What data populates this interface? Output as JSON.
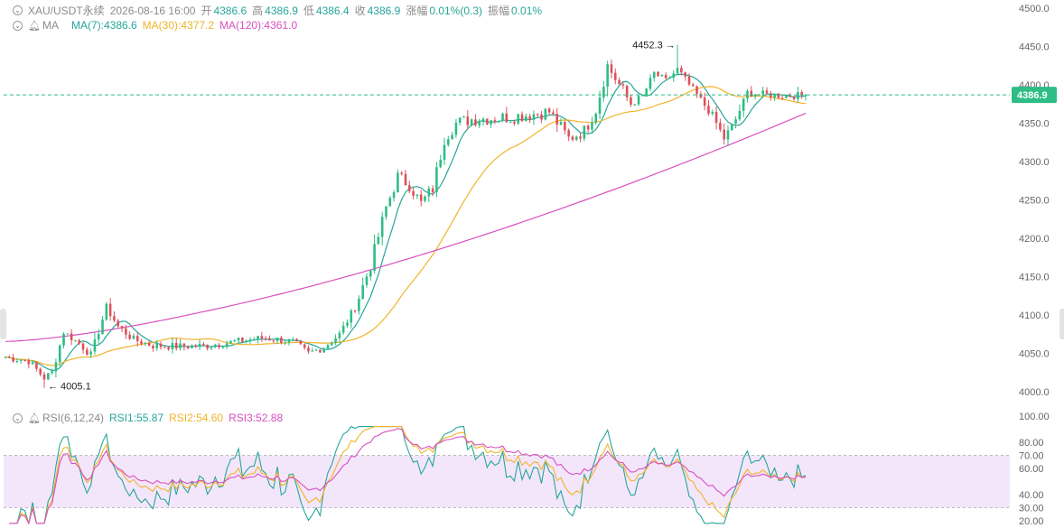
{
  "header": {
    "symbol": "XAU/USDT永续",
    "time": "2026-08-16 16:00",
    "open_label": "开",
    "open": "4386.6",
    "high_label": "高",
    "high": "4386.9",
    "low_label": "低",
    "low": "4386.4",
    "close_label": "收",
    "close": "4386.9",
    "change_label": "涨幅",
    "change": "0.01%(0.3)",
    "amplitude_label": "振幅",
    "amplitude": "0.01%"
  },
  "ma_legend": {
    "name": "MA",
    "items": [
      {
        "label": "MA(7):4386.6",
        "color": "#26a69a"
      },
      {
        "label": "MA(30):4377.2",
        "color": "#f0b429"
      },
      {
        "label": "MA(120):4361.0",
        "color": "#d94fbf"
      }
    ]
  },
  "rsi_legend": {
    "name": "RSI(6,12,24)",
    "items": [
      {
        "label": "RSI1:55.87",
        "color": "#26a69a"
      },
      {
        "label": "RSI2:54.60",
        "color": "#f0b429"
      },
      {
        "label": "RSI3:52.88",
        "color": "#d94fbf"
      }
    ]
  },
  "chart_data": {
    "type": "candlestick",
    "price_axis": {
      "ticks": [
        "4500.0",
        "4450.0",
        "4400.0",
        "4350.0",
        "4300.0",
        "4250.0",
        "4200.0",
        "4150.0",
        "4100.0",
        "4050.0",
        "4000.0"
      ],
      "ylim": [
        3995,
        4505
      ]
    },
    "current_price": "4386.9",
    "annotations": [
      {
        "text": "← 4005.1",
        "value": 4005.1
      },
      {
        "text": "4452.3 →",
        "value": 4452.3
      }
    ],
    "colors": {
      "up": "#2ebd85",
      "down": "#e0505a"
    },
    "ohlc_keypoints": [
      [
        0,
        4045
      ],
      [
        6,
        4040
      ],
      [
        10,
        4018
      ],
      [
        12,
        4025
      ],
      [
        15,
        4078
      ],
      [
        19,
        4063
      ],
      [
        22,
        4048
      ],
      [
        26,
        4110
      ],
      [
        29,
        4085
      ],
      [
        33,
        4068
      ],
      [
        38,
        4060
      ],
      [
        45,
        4059
      ],
      [
        52,
        4060
      ],
      [
        60,
        4066
      ],
      [
        66,
        4070
      ],
      [
        70,
        4068
      ],
      [
        74,
        4065
      ],
      [
        78,
        4050
      ],
      [
        82,
        4058
      ],
      [
        86,
        4075
      ],
      [
        90,
        4110
      ],
      [
        94,
        4165
      ],
      [
        98,
        4240
      ],
      [
        101,
        4280
      ],
      [
        104,
        4270
      ],
      [
        107,
        4245
      ],
      [
        110,
        4265
      ],
      [
        113,
        4330
      ],
      [
        116,
        4350
      ],
      [
        120,
        4355
      ],
      [
        130,
        4358
      ],
      [
        140,
        4365
      ],
      [
        145,
        4330
      ],
      [
        149,
        4340
      ],
      [
        152,
        4368
      ],
      [
        155,
        4425
      ],
      [
        158,
        4400
      ],
      [
        161,
        4375
      ],
      [
        164,
        4385
      ],
      [
        167,
        4415
      ],
      [
        170,
        4405
      ],
      [
        173,
        4420
      ],
      [
        176,
        4400
      ],
      [
        179,
        4380
      ],
      [
        182,
        4360
      ],
      [
        185,
        4330
      ],
      [
        188,
        4355
      ],
      [
        191,
        4390
      ],
      [
        194,
        4388
      ],
      [
        200,
        4386
      ],
      [
        206,
        4386
      ]
    ],
    "moving_averages": [
      {
        "name": "MA(7)",
        "period": 7,
        "color": "#26a69a"
      },
      {
        "name": "MA(30)",
        "period": 30,
        "color": "#f0b429"
      },
      {
        "name": "MA(120)",
        "period": 120,
        "color": "#d94fbf"
      }
    ],
    "rsi_axis": {
      "ticks": [
        {
          "label": "100.00",
          "v": 100
        },
        {
          "label": "80.00",
          "v": 80
        },
        {
          "label": "70.00",
          "v": 70
        },
        {
          "label": "60.00",
          "v": 60
        },
        {
          "label": "40.00",
          "v": 40
        },
        {
          "label": "30.00",
          "v": 30
        },
        {
          "label": "20.00",
          "v": 20
        }
      ],
      "band": [
        30,
        70
      ]
    },
    "rsi_series": [
      {
        "name": "RSI1",
        "period": 6,
        "color": "#26a69a"
      },
      {
        "name": "RSI2",
        "period": 12,
        "color": "#f0b429"
      },
      {
        "name": "RSI3",
        "period": 24,
        "color": "#d94fbf"
      }
    ]
  }
}
